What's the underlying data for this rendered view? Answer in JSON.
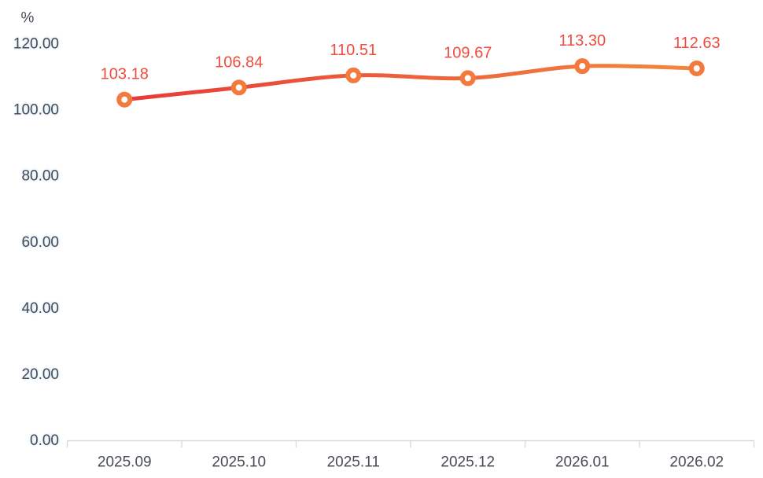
{
  "chart_data": {
    "type": "line",
    "title": "",
    "unit_label": "%",
    "categories": [
      "2025.09",
      "2025.10",
      "2025.11",
      "2025.12",
      "2026.01",
      "2026.02"
    ],
    "series": [
      {
        "name": "value",
        "values": [
          103.18,
          106.84,
          110.51,
          109.67,
          113.3,
          112.63
        ]
      }
    ],
    "data_labels": [
      "103.18",
      "106.84",
      "110.51",
      "109.67",
      "113.30",
      "112.63"
    ],
    "y_tick_labels": [
      "0.00",
      "20.00",
      "40.00",
      "60.00",
      "80.00",
      "100.00",
      "120.00"
    ],
    "ylim": [
      0,
      120
    ],
    "y_tick_step": 20,
    "grid": false,
    "legend": "none",
    "smooth": true,
    "marker_style": "ring",
    "colors": {
      "line_gradient_start": "#e83a3a",
      "line_gradient_end": "#f2883c",
      "marker_ring": "#f3793c",
      "marker_fill": "#ffffff",
      "data_label": "#f04b3e",
      "axis_line": "#d9d9d9",
      "axis_text": "#474c55",
      "y_label_halo": "#b2d1f2",
      "background": "#ffffff"
    }
  }
}
